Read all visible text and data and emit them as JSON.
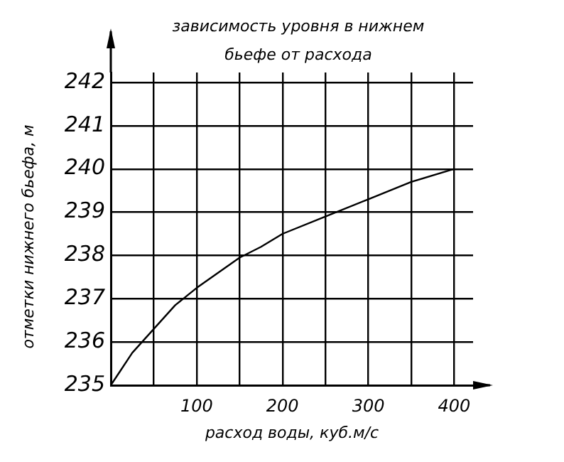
{
  "chart_data": {
    "type": "line",
    "title": "зависимость уровня в нижнем бьефе от расхода",
    "xlabel": "расход воды, куб.м/с",
    "ylabel": "отметки нижнего бьефа, м",
    "x": [
      0,
      10,
      25,
      50,
      75,
      100,
      125,
      150,
      175,
      200,
      250,
      300,
      350,
      400
    ],
    "series": [
      {
        "color": "#000000",
        "values": [
          235,
          235.3,
          235.75,
          236.3,
          236.85,
          237.25,
          237.6,
          237.95,
          238.2,
          238.5,
          238.9,
          239.3,
          239.7,
          240
        ]
      }
    ],
    "xlim": [
      0,
      422
    ],
    "xticks": [
      {
        "value": 0,
        "label": null
      },
      {
        "value": 50,
        "label": null
      },
      100,
      {
        "value": 150,
        "label": null
      },
      200,
      {
        "value": 250,
        "label": null
      },
      300,
      {
        "value": 350,
        "label": null
      },
      400
    ],
    "ylim": [
      235,
      242.23
    ],
    "yticks": [
      235,
      236,
      237,
      238,
      239,
      240,
      241,
      242
    ],
    "grid": true,
    "legend": false,
    "marker": "none",
    "line_style": "solid"
  }
}
